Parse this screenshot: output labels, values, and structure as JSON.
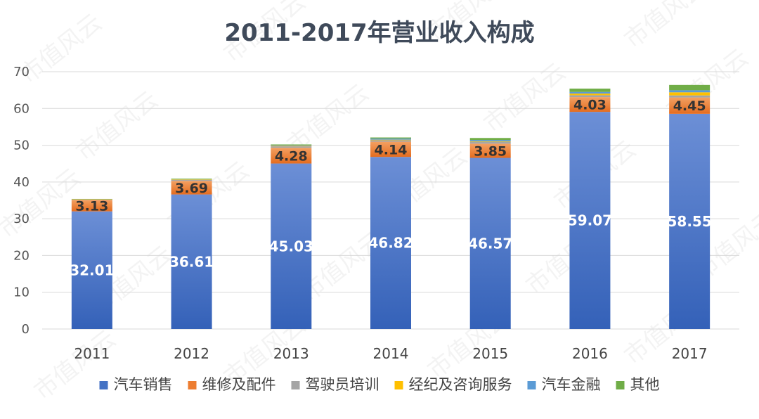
{
  "chart_data": {
    "type": "bar",
    "stacked": true,
    "title": "2011-2017年营业收入构成",
    "categories": [
      "2011",
      "2012",
      "2013",
      "2014",
      "2015",
      "2016",
      "2017"
    ],
    "ylim": [
      0,
      70
    ],
    "yticks": [
      0,
      10,
      20,
      30,
      40,
      50,
      60,
      70
    ],
    "grid": true,
    "legend_position": "bottom",
    "series": [
      {
        "name": "汽车销售",
        "color": "#4472c4",
        "values": [
          32.01,
          36.61,
          45.03,
          46.82,
          46.57,
          59.07,
          58.55
        ],
        "labels": [
          "32.01",
          "36.61",
          "45.03",
          "46.82",
          "46.57",
          "59.07",
          "58.55"
        ]
      },
      {
        "name": "维修及配件",
        "color": "#ed7d31",
        "values": [
          3.13,
          3.69,
          4.28,
          4.14,
          3.85,
          4.03,
          4.45
        ],
        "labels": [
          "3.13",
          "3.69",
          "4.28",
          "4.14",
          "3.85",
          "4.03",
          "4.45"
        ]
      },
      {
        "name": "驾驶员培训",
        "color": "#a5a5a5",
        "values": [
          0.1,
          0.3,
          0.4,
          0.4,
          0.45,
          0.5,
          0.55
        ],
        "labels": []
      },
      {
        "name": "经纪及咨询服务",
        "color": "#ffc000",
        "values": [
          0.05,
          0.1,
          0.15,
          0.15,
          0.15,
          0.45,
          0.85
        ],
        "labels": []
      },
      {
        "name": "汽车金融",
        "color": "#5b9bd5",
        "values": [
          0,
          0,
          0.15,
          0.3,
          0.4,
          0.45,
          0.55
        ],
        "labels": []
      },
      {
        "name": "其他",
        "color": "#70ad47",
        "values": [
          0.1,
          0.2,
          0.2,
          0.3,
          0.55,
          0.9,
          1.45
        ],
        "labels": []
      }
    ]
  },
  "watermark": "市值风云"
}
